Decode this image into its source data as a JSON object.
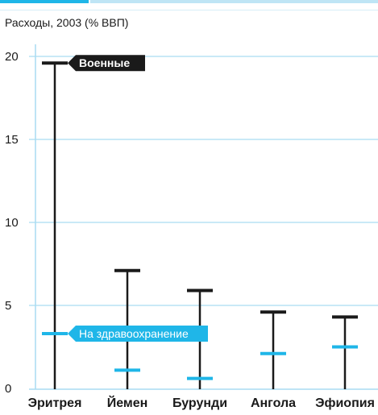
{
  "chart_data": {
    "type": "scatter",
    "title": "",
    "ylabel": "Расходы, 2003 (% ВВП)",
    "xlabel": "",
    "categories": [
      "Эритрея",
      "Йемен",
      "Бурунди",
      "Ангола",
      "Эфиопия"
    ],
    "yticks": [
      "0",
      "5",
      "10",
      "15",
      "20"
    ],
    "ylim": [
      0,
      20
    ],
    "grid": true,
    "series": [
      {
        "name": "Военные",
        "values": [
          19.6,
          7.1,
          5.9,
          4.6,
          4.3
        ],
        "color": "#1a1a1a"
      },
      {
        "name": "На здравоохранение",
        "values": [
          3.3,
          1.1,
          0.6,
          2.1,
          2.5
        ],
        "color": "#1fb6e8"
      }
    ],
    "stem_color": "#1a1a1a",
    "grid_color": "#a9dcf2"
  }
}
